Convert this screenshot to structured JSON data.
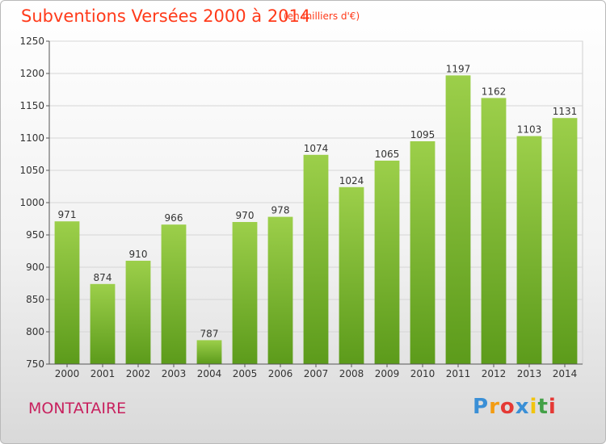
{
  "header": {
    "title": "Subventions Versées 2000 à 2014",
    "subtitle": "(en milliers d'€)"
  },
  "footer": {
    "commune": "MONTATAIRE",
    "brand": [
      "P",
      "r",
      "o",
      "x",
      "i",
      "t",
      "i"
    ],
    "brand_colors": [
      "#3a8fd6",
      "#f39c12",
      "#e53935",
      "#3a8fd6",
      "#f1c40f",
      "#43a047",
      "#e53935"
    ]
  },
  "colors": {
    "bar_top": "#9ccf4a",
    "bar_bottom": "#5c9b1b",
    "accent": "#ff3a1a",
    "commune": "#c8215e"
  },
  "chart_data": {
    "type": "bar",
    "categories": [
      "2000",
      "2001",
      "2002",
      "2003",
      "2004",
      "2005",
      "2006",
      "2007",
      "2008",
      "2009",
      "2010",
      "2011",
      "2012",
      "2013",
      "2014"
    ],
    "values": [
      971,
      874,
      910,
      966,
      787,
      970,
      978,
      1074,
      1024,
      1065,
      1095,
      1197,
      1162,
      1103,
      1131
    ],
    "ylim": [
      750,
      1250
    ],
    "yticks": [
      750,
      800,
      850,
      900,
      950,
      1000,
      1050,
      1100,
      1150,
      1200,
      1250
    ],
    "grid": true
  }
}
